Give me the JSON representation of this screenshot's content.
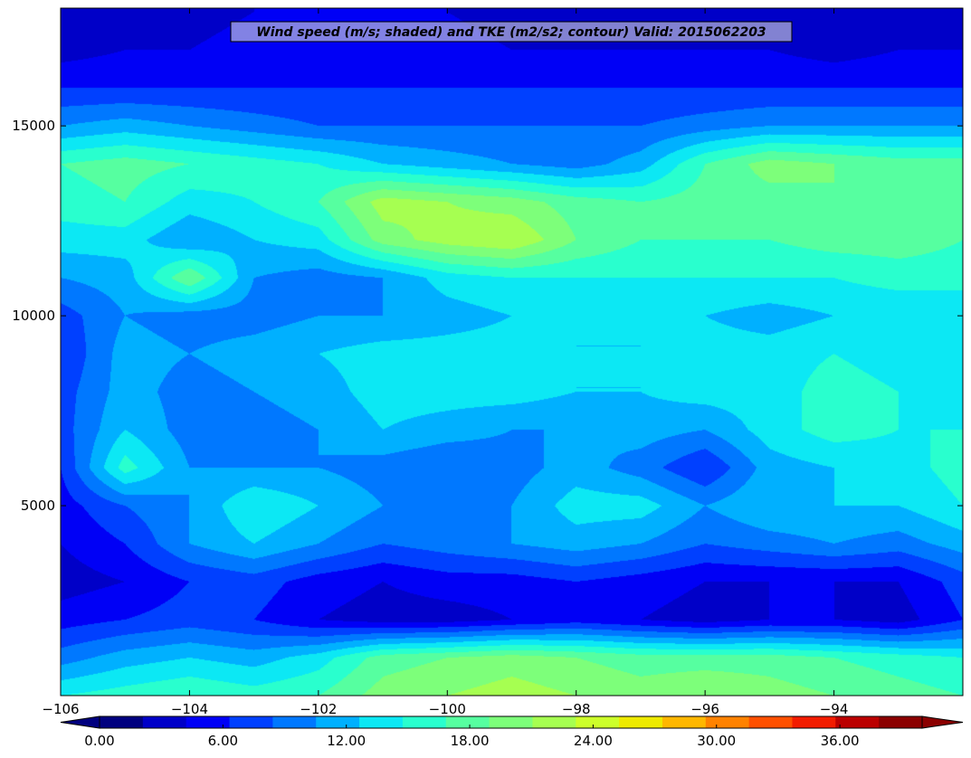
{
  "chart_data": {
    "type": "heatmap",
    "subtype": "filled-contour cross-section",
    "title": "Wind speed (m/s; shaded) and TKE (m2/s2; contour) Valid: 2015062203",
    "xlabel": "",
    "ylabel": "",
    "xlim": [
      -106.0,
      -92.0
    ],
    "ylim": [
      0,
      18100
    ],
    "x_ticks": [
      -106,
      -104,
      -102,
      -100,
      -98,
      -96,
      -94
    ],
    "x_tick_labels": [
      "−106",
      "−104",
      "−102",
      "−100",
      "−98",
      "−96",
      "−94"
    ],
    "y_ticks": [
      5000,
      10000,
      15000
    ],
    "y_tick_labels": [
      "5000",
      "10000",
      "15000"
    ],
    "grid": false,
    "colorbar": {
      "orientation": "horizontal",
      "location": "bottom",
      "levels": [
        0,
        2,
        4,
        6,
        8,
        10,
        12,
        14,
        16,
        18,
        20,
        22,
        24,
        26,
        28,
        30,
        32,
        34,
        36,
        38,
        40
      ],
      "tick_values": [
        0,
        6,
        12,
        18,
        24,
        30,
        36
      ],
      "tick_labels": [
        "0.00",
        "6.00",
        "12.00",
        "18.00",
        "24.00",
        "30.00",
        "36.00"
      ],
      "colors": [
        "#00007f",
        "#0000c8",
        "#0000f6",
        "#0040ff",
        "#0078ff",
        "#00b0ff",
        "#0ce8f4",
        "#29ffce",
        "#56ffa0",
        "#7dff7a",
        "#a6ff51",
        "#cdff2a",
        "#eeea00",
        "#ffb700",
        "#ff8200",
        "#ff5000",
        "#f21c00",
        "#bb0000",
        "#8b0000"
      ],
      "under_color": "#00007f",
      "over_color": "#8b0000"
    },
    "field": {
      "units": "m/s",
      "x": [
        -106.0,
        -105.0,
        -104.0,
        -103.0,
        -102.0,
        -101.0,
        -100.0,
        -99.0,
        -98.0,
        -97.0,
        -96.0,
        -95.0,
        -94.0,
        -93.0,
        -92.0
      ],
      "y": [
        0,
        1000,
        2000,
        3000,
        4000,
        5000,
        6000,
        7000,
        8000,
        9000,
        10000,
        11000,
        12000,
        13000,
        14000,
        15000,
        16000,
        17000,
        18000
      ],
      "values": [
        [
          14,
          15,
          16,
          15,
          16,
          19,
          20,
          21,
          20,
          19,
          20,
          19,
          18,
          17,
          16
        ],
        [
          9,
          11,
          12,
          11,
          13,
          17,
          18,
          19,
          18,
          17,
          17,
          17,
          16,
          15,
          14
        ],
        [
          5,
          6,
          7,
          6,
          4,
          3,
          3,
          4,
          5,
          4,
          3,
          4,
          4,
          3,
          6
        ],
        [
          3,
          4,
          6,
          7,
          5,
          4,
          5,
          5,
          6,
          5,
          4,
          4,
          4,
          4,
          7
        ],
        [
          4,
          6,
          10,
          12,
          10,
          8,
          9,
          10,
          11,
          10,
          8,
          9,
          10,
          9,
          11
        ],
        [
          5,
          8,
          10,
          14,
          12,
          10,
          9,
          10,
          13,
          13,
          10,
          12,
          12,
          12,
          14
        ],
        [
          6,
          15,
          10,
          10,
          10,
          9,
          8,
          9,
          11,
          9,
          6,
          11,
          12,
          13,
          15
        ],
        [
          7,
          12,
          9,
          9,
          10,
          12,
          11,
          10,
          10,
          11,
          10,
          13,
          15,
          14,
          14
        ],
        [
          7,
          11,
          9,
          10,
          11,
          13,
          13,
          13,
          12,
          12,
          13,
          13,
          15,
          14,
          13
        ],
        [
          6,
          11,
          10,
          11,
          12,
          13,
          13,
          13,
          12,
          12,
          13,
          13,
          14,
          13,
          12
        ],
        [
          7,
          10,
          9,
          9,
          10,
          10,
          11,
          12,
          12,
          12,
          12,
          11,
          12,
          12,
          12
        ],
        [
          10,
          11,
          18,
          10,
          9,
          10,
          13,
          14,
          14,
          14,
          14,
          14,
          14,
          15,
          15
        ],
        [
          13,
          13,
          10,
          12,
          13,
          19,
          21,
          22,
          18,
          16,
          16,
          16,
          17,
          17,
          16
        ],
        [
          15,
          16,
          13,
          14,
          16,
          21,
          20,
          19,
          17,
          16,
          17,
          17,
          18,
          17,
          16
        ],
        [
          16,
          17,
          16,
          15,
          14,
          12,
          11,
          10,
          9,
          11,
          16,
          19,
          18,
          17,
          17
        ],
        [
          10,
          11,
          10,
          9,
          8,
          8,
          8,
          8,
          8,
          8,
          9,
          10,
          10,
          10,
          10
        ],
        [
          6,
          6,
          6,
          6,
          6,
          6,
          6,
          6,
          6,
          6,
          6,
          6,
          6,
          6,
          6
        ],
        [
          3,
          4,
          4,
          5,
          5,
          5,
          5,
          4,
          4,
          4,
          4,
          4,
          3,
          4,
          4
        ],
        [
          2,
          3,
          3,
          4,
          4,
          4,
          4,
          3,
          3,
          3,
          3,
          3,
          2,
          3,
          3
        ]
      ]
    }
  }
}
